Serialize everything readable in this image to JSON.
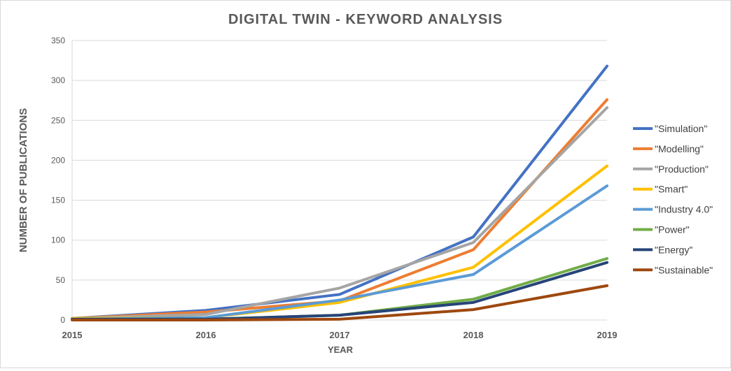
{
  "chart_data": {
    "type": "line",
    "title": "DIGITAL TWIN - KEYWORD ANALYSIS",
    "xlabel": "YEAR",
    "ylabel": "NUMBER OF PUBLICATIONS",
    "x": [
      "2015",
      "2016",
      "2017",
      "2018",
      "2019"
    ],
    "ylim": [
      0,
      350
    ],
    "yticks": [
      0,
      50,
      100,
      150,
      200,
      250,
      300,
      350
    ],
    "grid": "horizontal",
    "legend_position": "right",
    "series": [
      {
        "name": "\"Simulation\"",
        "color": "#4472C4",
        "values": [
          2,
          12,
          32,
          104,
          318
        ]
      },
      {
        "name": "\"Modelling\"",
        "color": "#ED7D31",
        "values": [
          2,
          10,
          24,
          88,
          276
        ]
      },
      {
        "name": "\"Production\"",
        "color": "#A5A5A5",
        "values": [
          2,
          7,
          40,
          97,
          266
        ]
      },
      {
        "name": "\"Smart\"",
        "color": "#FFC000",
        "values": [
          2,
          3,
          22,
          66,
          193
        ]
      },
      {
        "name": "\"Industry 4.0\"",
        "color": "#5B9BD5",
        "values": [
          1,
          3,
          25,
          57,
          168
        ]
      },
      {
        "name": "\"Power\"",
        "color": "#70AD47",
        "values": [
          1,
          1,
          6,
          26,
          77
        ]
      },
      {
        "name": "\"Energy\"",
        "color": "#264478",
        "values": [
          1,
          1,
          6,
          22,
          72
        ]
      },
      {
        "name": "\"Sustainable\"",
        "color": "#9E480E",
        "values": [
          0,
          0,
          1,
          13,
          43
        ]
      }
    ]
  }
}
